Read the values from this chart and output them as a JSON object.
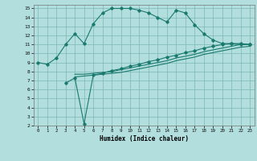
{
  "xlabel": "Humidex (Indice chaleur)",
  "bg_color": "#b2dede",
  "grid_color": "#7ab8b8",
  "line_color": "#1a7a6e",
  "xlim": [
    -0.5,
    23.5
  ],
  "ylim": [
    2,
    15.4
  ],
  "xticks": [
    0,
    1,
    2,
    3,
    4,
    5,
    6,
    7,
    8,
    9,
    10,
    11,
    12,
    13,
    14,
    15,
    16,
    17,
    18,
    19,
    20,
    21,
    22,
    23
  ],
  "yticks": [
    2,
    3,
    4,
    5,
    6,
    7,
    8,
    9,
    10,
    11,
    12,
    13,
    14,
    15
  ],
  "line1_x": [
    0,
    1,
    2,
    3,
    4,
    5,
    6,
    7,
    8,
    9,
    10,
    11,
    12,
    13,
    14,
    15,
    16,
    17,
    18,
    19,
    20,
    21,
    22,
    23
  ],
  "line1_y": [
    9.0,
    8.8,
    9.5,
    11.0,
    12.2,
    11.1,
    13.3,
    14.5,
    15.0,
    15.0,
    15.0,
    14.8,
    14.5,
    14.0,
    13.5,
    14.8,
    14.5,
    13.2,
    12.2,
    11.5,
    11.1,
    11.1,
    11.0,
    11.0
  ],
  "line2_x": [
    3,
    4,
    5,
    6,
    7,
    8,
    9,
    10,
    11,
    12,
    13,
    14,
    15,
    16,
    17,
    18,
    19,
    20,
    21,
    22,
    23
  ],
  "line2_y": [
    6.7,
    7.3,
    2.2,
    7.6,
    7.8,
    8.1,
    8.3,
    8.6,
    8.8,
    9.1,
    9.3,
    9.6,
    9.8,
    10.1,
    10.3,
    10.6,
    10.8,
    11.0,
    11.1,
    11.1,
    11.0
  ],
  "line3_x": [
    4,
    5,
    6,
    7,
    8,
    9,
    10,
    11,
    12,
    13,
    14,
    15,
    16,
    17,
    18,
    19,
    20,
    21,
    22,
    23
  ],
  "line3_y": [
    7.7,
    7.7,
    7.8,
    7.9,
    8.0,
    8.2,
    8.4,
    8.6,
    8.8,
    9.0,
    9.2,
    9.5,
    9.7,
    9.9,
    10.2,
    10.4,
    10.6,
    10.8,
    11.0,
    11.0
  ],
  "line4_x": [
    4,
    5,
    6,
    7,
    8,
    9,
    10,
    11,
    12,
    13,
    14,
    15,
    16,
    17,
    18,
    19,
    20,
    21,
    22,
    23
  ],
  "line4_y": [
    7.4,
    7.5,
    7.6,
    7.7,
    7.8,
    7.9,
    8.1,
    8.3,
    8.5,
    8.7,
    8.9,
    9.2,
    9.4,
    9.6,
    9.9,
    10.1,
    10.3,
    10.5,
    10.7,
    10.8
  ]
}
